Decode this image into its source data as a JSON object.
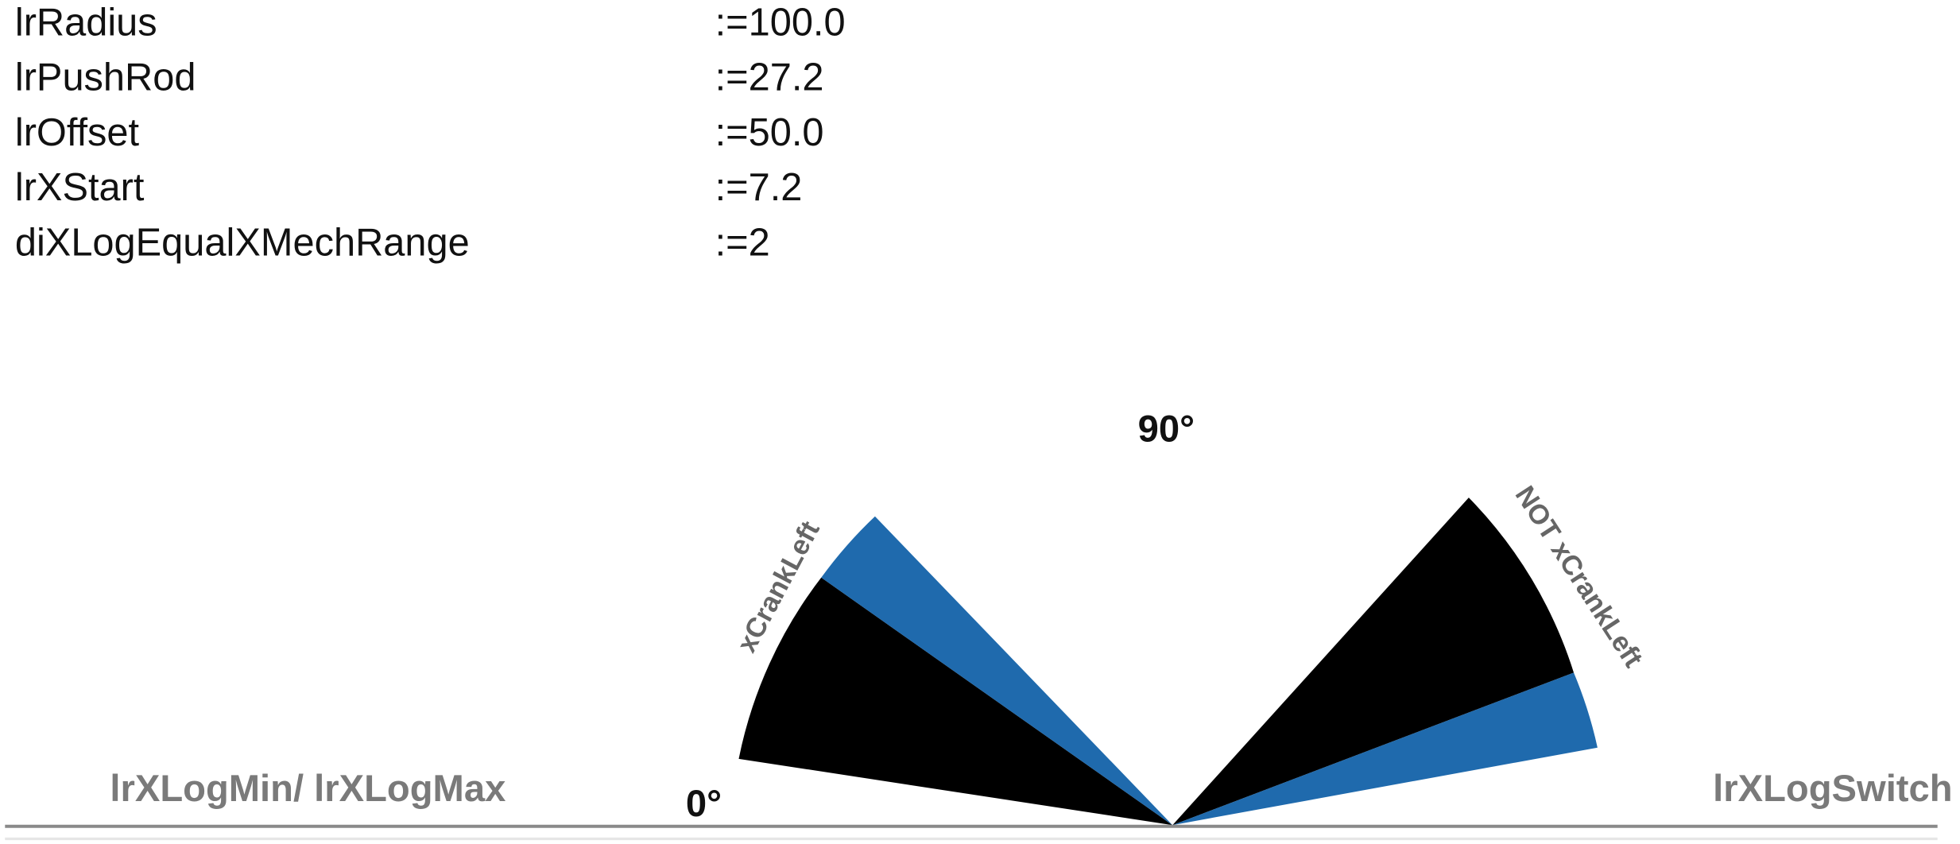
{
  "params": [
    {
      "name": "lrRadius",
      "value": ":=100.0"
    },
    {
      "name": "lrPushRod",
      "value": ":=27.2"
    },
    {
      "name": "lrOffset",
      "value": ":=50.0"
    },
    {
      "name": "lrXStart",
      "value": ":=7.2"
    },
    {
      "name": "diXLogEqualXMechRange",
      "value": ":=2"
    }
  ],
  "diagram": {
    "angle_top": "90°",
    "angle_zero": "0°",
    "left_sector_label": "xCrankLeft",
    "right_sector_label": "NOT xCrankLeft",
    "left_baseline_label": "lrXLogMin/ lrXLogMax",
    "right_baseline_label": "lrXLogSwitch"
  }
}
